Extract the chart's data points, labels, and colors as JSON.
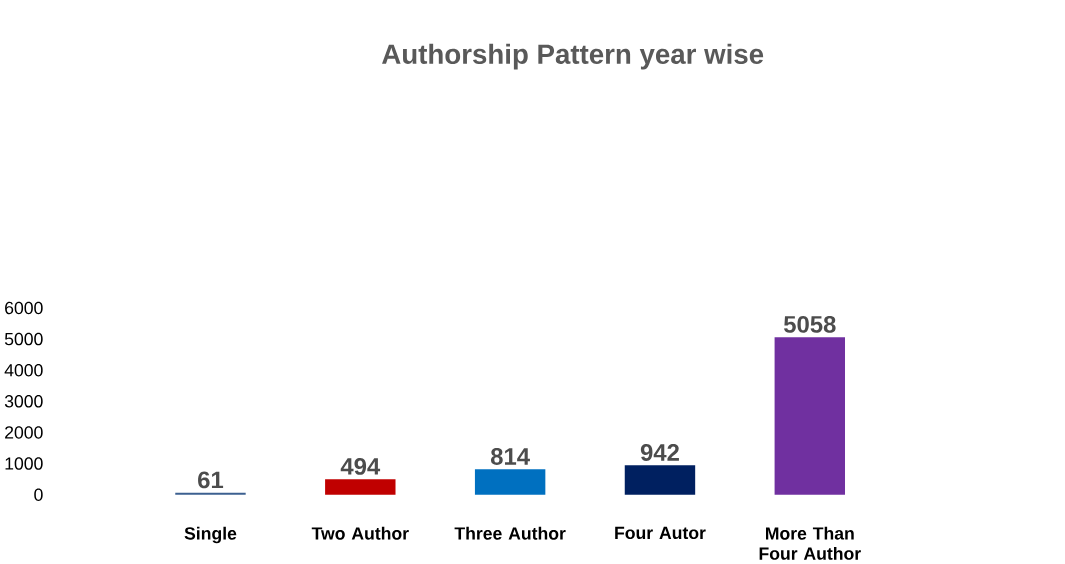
{
  "chart_data": {
    "type": "bar",
    "title": "Authorship Pattern year wise",
    "categories": [
      "Single",
      "Two Author",
      "Three Author",
      "Four Autor",
      "More Than Four Author"
    ],
    "values": [
      61,
      494,
      814,
      942,
      5058
    ],
    "colors": [
      "#3c6090",
      "#c00000",
      "#0070c0",
      "#002060",
      "#7030a0"
    ],
    "ylim": [
      0,
      6000
    ],
    "yticks": [
      0,
      1000,
      2000,
      3000,
      4000,
      5000,
      6000
    ],
    "data_labels": true
  }
}
